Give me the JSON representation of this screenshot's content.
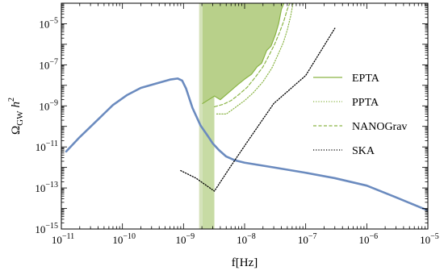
{
  "chart_data": {
    "type": "line",
    "xlabel": "f[Hz]",
    "ylabel_main": "Ω",
    "ylabel_sub": "GW",
    "ylabel_h": "h",
    "ylabel_sup": "2",
    "x_scale": "log",
    "y_scale": "log",
    "xlim": [
      1e-11,
      1e-05
    ],
    "ylim": [
      1e-15,
      0.0001
    ],
    "x_ticks": [
      {
        "value": 1e-11,
        "base": "10",
        "exp": "−11"
      },
      {
        "value": 1e-10,
        "base": "10",
        "exp": "−10"
      },
      {
        "value": 1e-09,
        "base": "10",
        "exp": "−9"
      },
      {
        "value": 1e-08,
        "base": "10",
        "exp": "−8"
      },
      {
        "value": 1e-07,
        "base": "10",
        "exp": "−7"
      },
      {
        "value": 1e-06,
        "base": "10",
        "exp": "−6"
      },
      {
        "value": 1e-05,
        "base": "10",
        "exp": "−5"
      }
    ],
    "y_ticks": [
      {
        "value": 1e-15,
        "base": "10",
        "exp": "−15"
      },
      {
        "value": 1e-13,
        "base": "10",
        "exp": "−13"
      },
      {
        "value": 1e-11,
        "base": "10",
        "exp": "−11"
      },
      {
        "value": 1e-09,
        "base": "10",
        "exp": "−9"
      },
      {
        "value": 1e-07,
        "base": "10",
        "exp": "−7"
      },
      {
        "value": 1e-05,
        "base": "10",
        "exp": "−5"
      }
    ],
    "legend": {
      "placement": "right",
      "entries": [
        {
          "label": "EPTA",
          "style": "solid",
          "color": "#8ab445"
        },
        {
          "label": "PPTA",
          "style": "dotted",
          "color": "#8ab445"
        },
        {
          "label": "NANOGrav",
          "style": "dashed",
          "color": "#8ab445"
        },
        {
          "label": "SKA",
          "style": "dotted",
          "color": "#000000"
        }
      ]
    },
    "series": [
      {
        "style": "solid",
        "color": "#6b8bbf",
        "points": [
          [
            1.2e-11,
            6e-12
          ],
          [
            2e-11,
            3e-11
          ],
          [
            4e-11,
            2.2e-10
          ],
          [
            7e-11,
            1.1e-09
          ],
          [
            1.2e-10,
            3.4e-09
          ],
          [
            2e-10,
            7.5e-09
          ],
          [
            4e-10,
            1.35e-08
          ],
          [
            6e-10,
            1.9e-08
          ],
          [
            8e-10,
            2.15e-08
          ],
          [
            9.5e-10,
            1.7e-08
          ],
          [
            1.1e-09,
            7e-09
          ],
          [
            1.4e-09,
            8e-10
          ],
          [
            1.9e-09,
            1.1e-10
          ],
          [
            2.5e-09,
            3.4e-11
          ],
          [
            3e-09,
            1.5e-11
          ],
          [
            3.8e-09,
            7e-12
          ],
          [
            5e-09,
            3.4e-12
          ],
          [
            7e-09,
            2.2e-12
          ],
          [
            1e-08,
            1.7e-12
          ],
          [
            3e-08,
            1e-12
          ],
          [
            1e-07,
            5.5e-13
          ],
          [
            3e-07,
            3e-13
          ],
          [
            1e-06,
            1.3e-13
          ],
          [
            3e-06,
            3.5e-14
          ],
          [
            1e-05,
            8e-15
          ]
        ]
      },
      {
        "name": "EPTA",
        "style": "solid",
        "color": "#8ab445",
        "points": [
          [
            2.05e-09,
            1.3e-09
          ],
          [
            3.2e-09,
            3e-09
          ],
          [
            4e-09,
            2e-09
          ],
          [
            5.5e-09,
            4.5e-09
          ],
          [
            7.5e-09,
            1e-08
          ],
          [
            1e-08,
            2e-08
          ],
          [
            1.3e-08,
            3.5e-08
          ],
          [
            1.6e-08,
            8e-08
          ],
          [
            1.9e-08,
            1.2e-07
          ],
          [
            2.3e-08,
            5e-07
          ],
          [
            2.7e-08,
            8e-07
          ],
          [
            3.2e-08,
            3e-06
          ],
          [
            3.6e-08,
            1e-05
          ],
          [
            4e-08,
            5e-05
          ],
          [
            4.4e-08,
            0.0001
          ]
        ]
      },
      {
        "name": "PPTA",
        "style": "dotted",
        "color": "#8ab445",
        "points": [
          [
            3.5e-09,
            4e-10
          ],
          [
            5e-09,
            4e-10
          ],
          [
            6.5e-09,
            7e-10
          ],
          [
            1e-08,
            1.8e-09
          ],
          [
            1.4e-08,
            4.5e-09
          ],
          [
            2e-08,
            1.5e-08
          ],
          [
            2.8e-08,
            7e-08
          ],
          [
            3.5e-08,
            3e-07
          ],
          [
            4.3e-08,
            1.2e-06
          ],
          [
            5e-08,
            5e-06
          ],
          [
            5.7e-08,
            2.5e-05
          ],
          [
            6.2e-08,
            0.0001
          ]
        ]
      },
      {
        "name": "NANOGrav",
        "style": "dashed",
        "color": "#8ab445",
        "points": [
          [
            3.2e-09,
            9e-10
          ],
          [
            4.5e-09,
            1.2e-09
          ],
          [
            6e-09,
            1.8e-09
          ],
          [
            8e-09,
            3.5e-09
          ],
          [
            1.1e-08,
            8e-09
          ],
          [
            1.5e-08,
            2.5e-08
          ],
          [
            2e-08,
            8e-08
          ],
          [
            2.5e-08,
            2.8e-07
          ],
          [
            3.1e-08,
            1e-06
          ],
          [
            3.7e-08,
            3.5e-06
          ],
          [
            4.4e-08,
            1.4e-05
          ],
          [
            5e-08,
            5e-05
          ],
          [
            5.5e-08,
            0.0001
          ]
        ]
      },
      {
        "name": "SKA",
        "style": "dotted",
        "color": "#000000",
        "points": [
          [
            9e-10,
            7e-13
          ],
          [
            1.6e-09,
            3e-13
          ],
          [
            3.2e-09,
            7e-14
          ],
          [
            6e-09,
            1.2e-12
          ],
          [
            1.2e-08,
            2.5e-11
          ],
          [
            3e-08,
            1.3e-09
          ],
          [
            1e-07,
            3e-08
          ],
          [
            3e-07,
            6e-06
          ]
        ]
      }
    ],
    "regions": [
      {
        "f_min": 1.8e-09,
        "f_max": 2.05e-09,
        "color": "#d4e2b9"
      },
      {
        "f_min": 2.05e-09,
        "f_max": 3.2e-09,
        "color": "#c7dba4"
      }
    ],
    "pta_fill_color": "#b8d08a"
  }
}
